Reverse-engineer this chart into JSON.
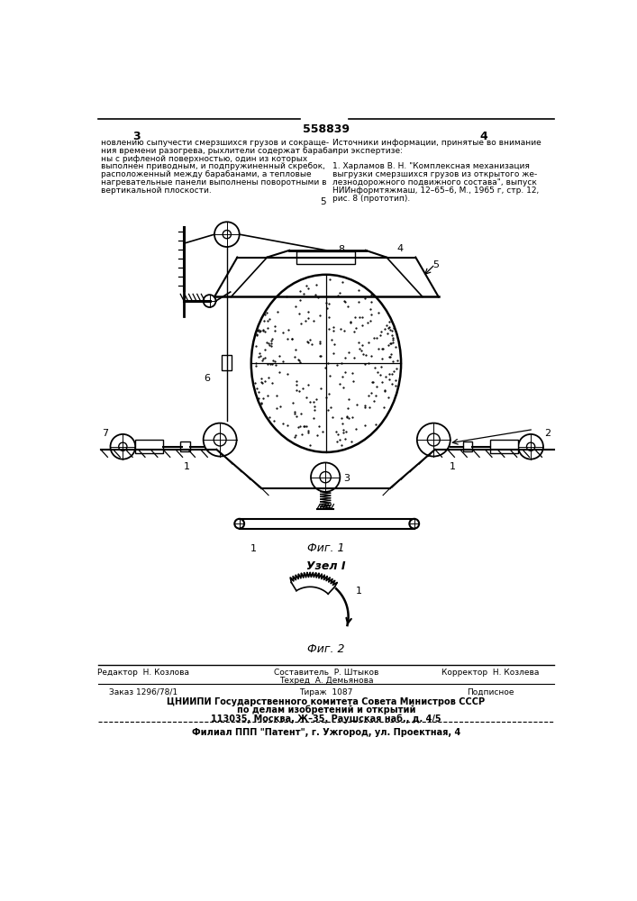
{
  "bg_color": "#ffffff",
  "patent_number": "558839",
  "page_numbers": [
    "3",
    "4"
  ],
  "left_lines": [
    "новлению сыпучести смерзшихся грузов и сокраще-",
    "ния времени разогрева, рыхлители содержат бараба-",
    "ны с рифленой поверхностью, один из которых",
    "выполнен приводным, и подпружиненный скребок,",
    "расположенный между барабанами, а тепловые",
    "нагревательные панели выполнены поворотными в",
    "вертикальной плоскости."
  ],
  "right_lines": [
    "Источники информации, принятые во внимание",
    "при экспертизе:",
    "",
    "1. Харламов В. Н. \"Комплексная механизация",
    "выгрузки смерзшихся грузов из открытого же-",
    "лезнодорожного подвижного состава\", выпуск",
    "НИИнформтяжмаш, 12–65–6, М., 1965 г, стр. 12,",
    "рис. 8 (прототип)."
  ],
  "fig1_caption": "Фиг. 1",
  "fig2_title": "Узел I",
  "fig2_caption": "Фиг. 2",
  "footer_editor": "Редактор  Н. Козлова",
  "footer_compiler": "Составитель  Р. Штыков",
  "footer_corrector": "Корректор  Н. Козлева",
  "footer_techred": "Техред  А. Демьянова",
  "footer_order": "Заказ 1296/78/1",
  "footer_tirazh": "Тираж  1087",
  "footer_podpis": "Подписное",
  "footer_org1": "ЦНИИПИ Государственного комитета Совета Министров СССР",
  "footer_org2": "по делам изобретений и открытий",
  "footer_addr": "113035, Москва, Ж–35, Раушская наб., д. 4/5",
  "footer_branch": "Филиал ППП \"Патент\", г. Ужгород, ул. Проектная, 4"
}
